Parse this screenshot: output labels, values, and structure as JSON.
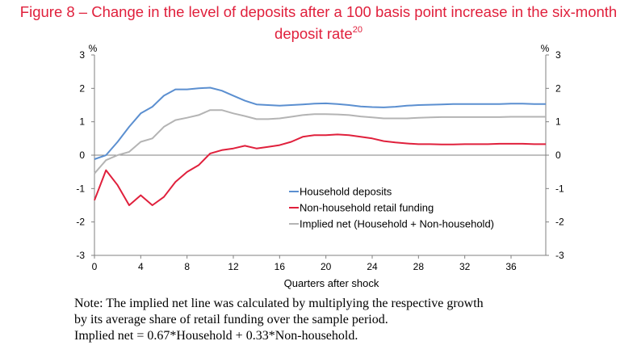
{
  "header": {
    "title_line1": "Figure 8 – Change in the level of deposits after a 100 basis point increase in the six-month",
    "title_line2": "deposit rate",
    "title_footnote": "20"
  },
  "chart_data": {
    "type": "line",
    "xlabel": "Quarters after shock",
    "ylabel_left": "%",
    "ylabel_right": "%",
    "xlim": [
      0,
      39
    ],
    "ylim": [
      -3,
      3
    ],
    "xticks": [
      0,
      4,
      8,
      12,
      16,
      20,
      24,
      28,
      32,
      36
    ],
    "yticks": [
      -3,
      -2,
      -1,
      0,
      1,
      2,
      3
    ],
    "legend_position": "bottom-right",
    "x": [
      0,
      1,
      2,
      3,
      4,
      5,
      6,
      7,
      8,
      9,
      10,
      11,
      12,
      13,
      14,
      15,
      16,
      17,
      18,
      19,
      20,
      21,
      22,
      23,
      24,
      25,
      26,
      27,
      28,
      29,
      30,
      31,
      32,
      33,
      34,
      35,
      36,
      37,
      38,
      39
    ],
    "series": [
      {
        "name": "Household deposits",
        "color": "#5b8fd0",
        "values": [
          -0.12,
          0.0,
          0.4,
          0.85,
          1.25,
          1.45,
          1.78,
          1.97,
          1.97,
          2.0,
          2.02,
          1.93,
          1.78,
          1.63,
          1.52,
          1.5,
          1.48,
          1.5,
          1.52,
          1.54,
          1.55,
          1.53,
          1.5,
          1.46,
          1.44,
          1.43,
          1.45,
          1.48,
          1.5,
          1.51,
          1.52,
          1.53,
          1.53,
          1.53,
          1.53,
          1.53,
          1.54,
          1.54,
          1.53,
          1.53
        ]
      },
      {
        "name": "Non-household retail funding",
        "color": "#e0203c",
        "values": [
          -1.35,
          -0.45,
          -0.9,
          -1.5,
          -1.2,
          -1.5,
          -1.25,
          -0.8,
          -0.5,
          -0.3,
          0.05,
          0.15,
          0.2,
          0.28,
          0.2,
          0.25,
          0.3,
          0.4,
          0.55,
          0.6,
          0.6,
          0.62,
          0.6,
          0.55,
          0.5,
          0.42,
          0.38,
          0.35,
          0.33,
          0.33,
          0.32,
          0.32,
          0.33,
          0.33,
          0.33,
          0.34,
          0.34,
          0.34,
          0.33,
          0.33
        ]
      },
      {
        "name": "Implied net (Household + Non-household)",
        "color": "#b4b4b4",
        "values": [
          -0.55,
          -0.15,
          0.0,
          0.1,
          0.4,
          0.5,
          0.85,
          1.05,
          1.12,
          1.2,
          1.35,
          1.35,
          1.25,
          1.17,
          1.08,
          1.08,
          1.1,
          1.15,
          1.2,
          1.23,
          1.23,
          1.22,
          1.2,
          1.16,
          1.13,
          1.1,
          1.1,
          1.1,
          1.12,
          1.13,
          1.14,
          1.14,
          1.14,
          1.14,
          1.14,
          1.14,
          1.15,
          1.15,
          1.15,
          1.15
        ]
      }
    ]
  },
  "note": {
    "line1": "Note: The implied net line was calculated by multiplying the respective growth",
    "line2": "by its average share of retail funding over the sample period.",
    "line3": "Implied net = 0.67*Household + 0.33*Non-household."
  }
}
